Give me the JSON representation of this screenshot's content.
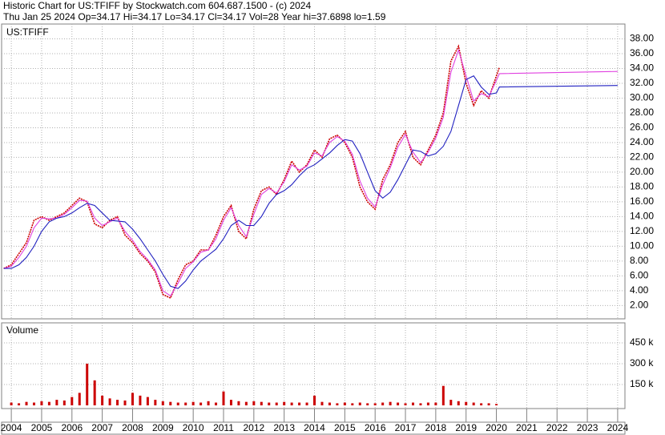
{
  "chart_data": {
    "type": "line",
    "title": "Historic Chart for US:TFIFF by Stockwatch.com 604.687.1500 - (c) 2024",
    "subtitle": "Thu Jan 25 2024  Op=34.17  Hi=34.17  Lo=34.17  Cl=34.17  Vol=28  Year hi=37.6898  lo=1.59",
    "symbol_label": "US:TFIFF",
    "x": [
      2003.75,
      2004,
      2004.25,
      2004.5,
      2004.75,
      2005,
      2005.25,
      2005.5,
      2005.75,
      2006,
      2006.25,
      2006.5,
      2006.75,
      2007,
      2007.25,
      2007.5,
      2007.75,
      2008,
      2008.25,
      2008.5,
      2008.75,
      2009,
      2009.25,
      2009.5,
      2009.75,
      2010,
      2010.25,
      2010.5,
      2010.75,
      2011,
      2011.25,
      2011.5,
      2011.75,
      2012,
      2012.25,
      2012.5,
      2012.75,
      2013,
      2013.25,
      2013.5,
      2013.75,
      2014,
      2014.25,
      2014.5,
      2014.75,
      2015,
      2015.25,
      2015.5,
      2015.75,
      2016,
      2016.25,
      2016.5,
      2016.75,
      2017,
      2017.25,
      2017.5,
      2017.75,
      2018,
      2018.25,
      2018.5,
      2018.75,
      2019,
      2019.25,
      2019.5,
      2019.75,
      2020,
      2020.1,
      2024
    ],
    "series": [
      {
        "color": "#cc0000",
        "values": [
          7,
          7.5,
          9,
          10.5,
          13.5,
          14,
          13.5,
          14,
          14.5,
          15.5,
          16.5,
          16,
          13,
          12.5,
          13.5,
          14,
          11.5,
          10.5,
          9,
          8,
          6.5,
          3.5,
          3,
          5.5,
          7.5,
          8,
          9.5,
          9.5,
          11.5,
          14,
          15.5,
          12,
          11,
          15,
          17.5,
          18,
          17,
          19,
          21.5,
          20,
          21,
          23,
          22,
          24.5,
          25,
          24,
          22,
          18,
          16,
          15,
          19,
          21,
          24,
          25.5,
          22,
          21,
          23,
          25,
          28,
          35,
          37,
          32,
          29,
          31,
          30,
          33,
          34.17,
          null
        ]
      },
      {
        "color": "#e040e0",
        "values": [
          7,
          7.3,
          8.5,
          10,
          12.5,
          13.8,
          13.7,
          13.8,
          14.3,
          15.2,
          16.2,
          16.1,
          13.8,
          12.8,
          13.3,
          13.8,
          12,
          10.8,
          9.3,
          8.2,
          6.8,
          4,
          3.3,
          5,
          7,
          7.9,
          9.2,
          9.5,
          11,
          13.5,
          15.2,
          12.8,
          11.3,
          14.3,
          17,
          17.8,
          17.2,
          18.7,
          21,
          20.3,
          20.8,
          22.6,
          22.2,
          24,
          24.8,
          24.2,
          22.4,
          18.8,
          16.5,
          15.3,
          18.3,
          20.6,
          23.4,
          25.1,
          22.7,
          21.3,
          22.7,
          24.6,
          27.4,
          33.5,
          36.5,
          33,
          29.6,
          30.6,
          30.2,
          32.4,
          33.3,
          33.6
        ]
      },
      {
        "color": "#2020c0",
        "values": [
          7,
          7,
          7.5,
          8.5,
          10,
          12,
          13.3,
          13.8,
          14,
          14.5,
          15.2,
          15.8,
          15.5,
          14.5,
          13.5,
          13.4,
          13.3,
          12.3,
          11,
          9.5,
          8,
          6.2,
          4.6,
          4.3,
          5.3,
          6.8,
          8,
          8.8,
          9.6,
          11,
          12.8,
          13.5,
          12.8,
          12.8,
          14,
          15.8,
          17,
          17.5,
          18.3,
          19.5,
          20.5,
          21,
          21.8,
          22.6,
          23.6,
          24.4,
          24.2,
          22.5,
          20,
          17.5,
          16.5,
          17.3,
          19,
          21,
          23,
          22.8,
          22.2,
          22.5,
          23.5,
          25.5,
          29,
          32.5,
          33,
          31.5,
          30.5,
          30.7,
          31.5,
          31.7
        ]
      }
    ],
    "xlim": [
      2003.68,
      2024.24
    ],
    "xticks": [
      2004,
      2005,
      2006,
      2007,
      2008,
      2009,
      2010,
      2011,
      2012,
      2013,
      2014,
      2015,
      2016,
      2017,
      2018,
      2019,
      2020,
      2021,
      2022,
      2023,
      2024
    ],
    "ylim": [
      0.2,
      40
    ],
    "yticks": [
      {
        "value": 2,
        "label": "2.00"
      },
      {
        "value": 4,
        "label": "4.00"
      },
      {
        "value": 6,
        "label": "6.00"
      },
      {
        "value": 8,
        "label": "8.00"
      },
      {
        "value": 10,
        "label": "10.00"
      },
      {
        "value": 12,
        "label": "12.00"
      },
      {
        "value": 14,
        "label": "14.00"
      },
      {
        "value": 16,
        "label": "16.00"
      },
      {
        "value": 18,
        "label": "18.00"
      },
      {
        "value": 20,
        "label": "20.00"
      },
      {
        "value": 22,
        "label": "22.00"
      },
      {
        "value": 24,
        "label": "24.00"
      },
      {
        "value": 26,
        "label": "26.00"
      },
      {
        "value": 28,
        "label": "28.00"
      },
      {
        "value": 30,
        "label": "30.00"
      },
      {
        "value": 32,
        "label": "32.00"
      },
      {
        "value": 34,
        "label": "34.00"
      },
      {
        "value": 36,
        "label": "36.00"
      },
      {
        "value": 38,
        "label": "38.00"
      }
    ],
    "grid": true,
    "volume": {
      "label": "Volume",
      "color": "#cc0000",
      "x": [
        2004,
        2004.25,
        2004.5,
        2004.75,
        2005,
        2005.25,
        2005.5,
        2005.75,
        2006,
        2006.25,
        2006.5,
        2006.75,
        2007,
        2007.25,
        2007.5,
        2007.75,
        2008,
        2008.25,
        2008.5,
        2008.75,
        2009,
        2009.25,
        2009.5,
        2009.75,
        2010,
        2010.25,
        2010.5,
        2010.75,
        2011,
        2011.25,
        2011.5,
        2011.75,
        2012,
        2012.25,
        2012.5,
        2012.75,
        2013,
        2013.25,
        2013.5,
        2013.75,
        2014,
        2014.25,
        2014.5,
        2014.75,
        2015,
        2015.25,
        2015.5,
        2015.75,
        2016,
        2016.25,
        2016.5,
        2016.75,
        2017,
        2017.25,
        2017.5,
        2017.75,
        2018,
        2018.25,
        2018.5,
        2018.75,
        2019,
        2019.25,
        2019.5,
        2019.75,
        2020
      ],
      "values": [
        20,
        15,
        25,
        20,
        30,
        25,
        40,
        35,
        60,
        90,
        300,
        180,
        70,
        50,
        40,
        35,
        90,
        70,
        60,
        40,
        30,
        25,
        20,
        20,
        25,
        20,
        30,
        20,
        100,
        40,
        30,
        25,
        30,
        25,
        20,
        20,
        25,
        20,
        20,
        20,
        70,
        25,
        20,
        15,
        20,
        15,
        20,
        15,
        15,
        20,
        25,
        20,
        15,
        20,
        15,
        20,
        20,
        140,
        40,
        30,
        25,
        20,
        15,
        15,
        10
      ],
      "ylim": [
        0,
        594
      ],
      "yticks": [
        {
          "value": 150,
          "label": "150 k"
        },
        {
          "value": 300,
          "label": "300 k"
        },
        {
          "value": 450,
          "label": "450 k"
        }
      ]
    }
  }
}
